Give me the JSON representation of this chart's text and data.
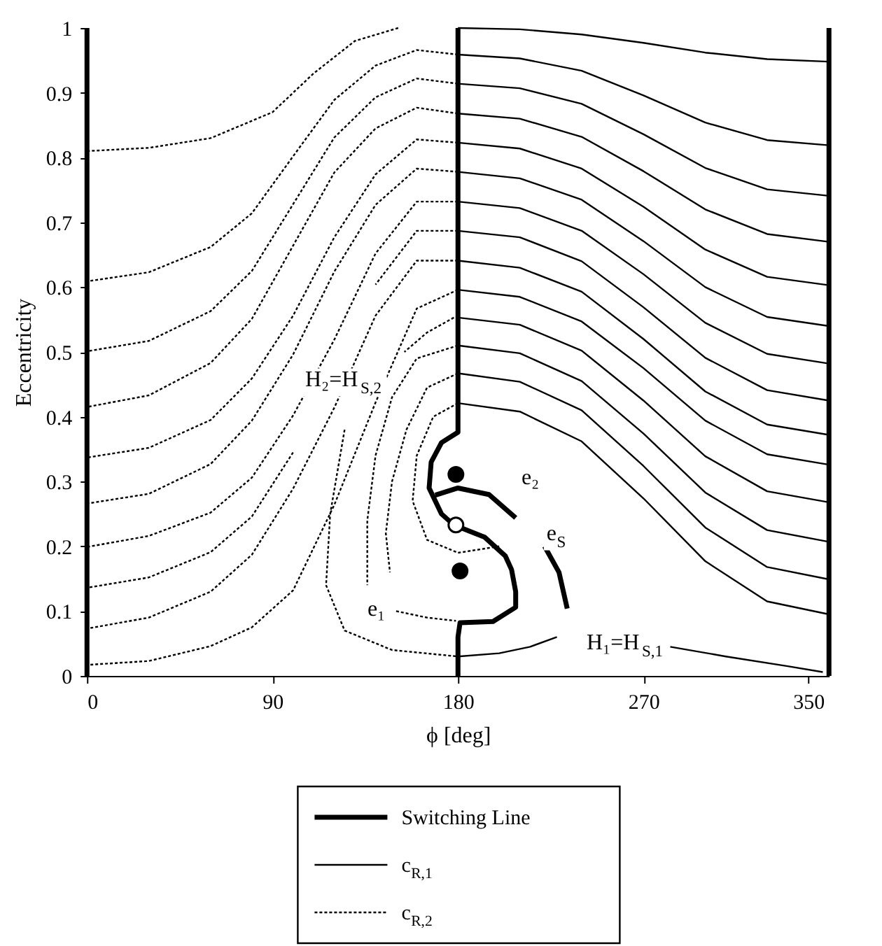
{
  "chart_data": {
    "type": "line",
    "xlabel": "ϕ [deg]",
    "ylabel": "Eccentricity",
    "xlim": [
      0,
      360
    ],
    "ylim": [
      0,
      1
    ],
    "xticks": [
      0,
      90,
      180,
      270,
      350
    ],
    "yticks": [
      0,
      0.1,
      0.2,
      0.3,
      0.4,
      0.5,
      0.6,
      0.7,
      0.8,
      0.9,
      1
    ],
    "grid": false,
    "legend": "bottom",
    "marker": "none",
    "series": [
      {
        "name": "Switching Line",
        "line_style": "solid",
        "color": "#000000",
        "x": [
          180,
          180,
          172,
          167,
          166,
          172,
          178,
          193,
          203,
          206,
          208,
          208,
          197,
          181,
          180,
          180,
          null,
          169,
          180,
          195,
          208,
          null,
          222,
          229,
          233
        ],
        "values": [
          1.0,
          0.376,
          0.36,
          0.33,
          0.29,
          0.25,
          0.233,
          0.214,
          0.185,
          0.164,
          0.13,
          0.106,
          0.084,
          0.082,
          0.06,
          0,
          null,
          0.279,
          0.29,
          0.28,
          0.244,
          null,
          0.2,
          0.16,
          0.104
        ]
      },
      {
        "name": "c$_{R,1}$",
        "line_style": "solid",
        "color": "#000000",
        "x": [
          360,
          330,
          300,
          270,
          240,
          210,
          180,
          null,
          360,
          330,
          300,
          270,
          240,
          210,
          180,
          null,
          360,
          330,
          300,
          270,
          240,
          210,
          180,
          null,
          360,
          330,
          300,
          270,
          240,
          210,
          180,
          null,
          360,
          330,
          300,
          270,
          240,
          210,
          180,
          null,
          360,
          330,
          300,
          270,
          240,
          210,
          180,
          null,
          360,
          330,
          300,
          270,
          240,
          210,
          180,
          null,
          360,
          330,
          300,
          270,
          240,
          210,
          180,
          null,
          360,
          330,
          300,
          270,
          240,
          210,
          180,
          null,
          360,
          330,
          300,
          270,
          240,
          210,
          180,
          null,
          360,
          330,
          300,
          270,
          240,
          210,
          180,
          null,
          360,
          330,
          300,
          270,
          240,
          210,
          180,
          null,
          360,
          330,
          300,
          270,
          240,
          210,
          180,
          null,
          360,
          330,
          300,
          270,
          240,
          210,
          180,
          null,
          357,
          340,
          310,
          283,
          null,
          180,
          200,
          215,
          228
        ],
        "values": [
          0.948,
          0.952,
          0.962,
          0.977,
          0.99,
          0.998,
          1.0,
          null,
          0.819,
          0.827,
          0.854,
          0.896,
          0.934,
          0.953,
          0.959,
          null,
          0.741,
          0.751,
          0.784,
          0.836,
          0.883,
          0.907,
          0.914,
          null,
          0.67,
          0.682,
          0.72,
          0.779,
          0.832,
          0.86,
          0.868,
          null,
          0.603,
          0.616,
          0.658,
          0.724,
          0.783,
          0.814,
          0.823,
          null,
          0.54,
          0.554,
          0.6,
          0.671,
          0.735,
          0.768,
          0.778,
          null,
          0.482,
          0.497,
          0.545,
          0.62,
          0.687,
          0.722,
          0.732,
          null,
          0.425,
          0.441,
          0.491,
          0.569,
          0.64,
          0.677,
          0.687,
          null,
          0.372,
          0.388,
          0.439,
          0.52,
          0.593,
          0.63,
          0.641,
          null,
          0.326,
          0.342,
          0.394,
          0.475,
          0.547,
          0.585,
          0.596,
          null,
          0.268,
          0.285,
          0.339,
          0.425,
          0.502,
          0.542,
          0.553,
          null,
          0.207,
          0.225,
          0.283,
          0.374,
          0.455,
          0.498,
          0.51,
          null,
          0.149,
          0.168,
          0.229,
          0.324,
          0.41,
          0.454,
          0.467,
          null,
          0.095,
          0.115,
          0.177,
          0.274,
          0.362,
          0.408,
          0.421,
          null,
          0.006,
          0.015,
          0.03,
          0.045,
          null,
          0.03,
          0.035,
          0.045,
          0.06
        ]
      },
      {
        "name": "c$_{R,2}$",
        "line_style": "dotted",
        "color": "#000000",
        "x": [
          151,
          130,
          110,
          90,
          60,
          30,
          0,
          null,
          180,
          160,
          140,
          120,
          100,
          80,
          60,
          30,
          0,
          null,
          180,
          160,
          140,
          120,
          100,
          80,
          60,
          30,
          0,
          null,
          180,
          160,
          140,
          120,
          100,
          80,
          60,
          30,
          0,
          null,
          180,
          160,
          140,
          120,
          100,
          80,
          60,
          30,
          0,
          null,
          180,
          160,
          140,
          120,
          100,
          80,
          60,
          30,
          0,
          null,
          180,
          160,
          140,
          120,
          100,
          80,
          60,
          30,
          0,
          null,
          180,
          160,
          140,
          null,
          100,
          80,
          60,
          30,
          0,
          null,
          180,
          160,
          140,
          120,
          100,
          80,
          60,
          30,
          0,
          null,
          180,
          160,
          140,
          120,
          100,
          80,
          60,
          30,
          0,
          null,
          178,
          165,
          154,
          null,
          125,
          118,
          116,
          125,
          148,
          180,
          null,
          180,
          160,
          148,
          140,
          136,
          136,
          null,
          180,
          165,
          155,
          148,
          145,
          147,
          null,
          180,
          168,
          160,
          158,
          165,
          180,
          200,
          null,
          150,
          165,
          179
        ],
        "values": [
          1.0,
          0.98,
          0.93,
          0.87,
          0.83,
          0.815,
          0.81,
          null,
          0.959,
          0.966,
          0.942,
          0.889,
          0.802,
          0.714,
          0.662,
          0.623,
          0.609,
          null,
          0.914,
          0.922,
          0.893,
          0.831,
          0.728,
          0.625,
          0.563,
          0.517,
          0.501,
          null,
          0.868,
          0.877,
          0.845,
          0.777,
          0.664,
          0.551,
          0.483,
          0.433,
          0.415,
          null,
          0.823,
          0.828,
          0.774,
          0.677,
          0.556,
          0.459,
          0.395,
          0.352,
          0.337,
          null,
          0.778,
          0.783,
          0.727,
          0.624,
          0.496,
          0.394,
          0.327,
          0.281,
          0.266,
          null,
          0.732,
          0.732,
          0.652,
          0.519,
          0.402,
          0.306,
          0.252,
          0.216,
          0.199,
          null,
          0.687,
          0.687,
          0.604,
          null,
          0.345,
          0.246,
          0.191,
          0.152,
          0.136,
          null,
          0.641,
          0.641,
          0.556,
          0.414,
          0.289,
          0.187,
          0.13,
          0.09,
          0.073,
          null,
          0.596,
          0.567,
          0.422,
          0.264,
          0.132,
          0.075,
          0.046,
          0.023,
          0.017,
          null,
          0.553,
          0.53,
          0.5,
          null,
          0.38,
          0.25,
          0.14,
          0.07,
          0.04,
          0.03,
          null,
          0.51,
          0.49,
          0.43,
          0.34,
          0.24,
          0.14,
          null,
          0.467,
          0.445,
          0.38,
          0.3,
          0.22,
          0.16,
          null,
          0.421,
          0.4,
          0.34,
          0.27,
          0.21,
          0.19,
          0.2,
          null,
          0.1,
          0.09,
          0.085
        ]
      },
      {
        "type": "scatter",
        "marker": "circle",
        "color": "#000000",
        "x": [
          179,
          181
        ],
        "values": [
          0.311,
          0.162
        ]
      },
      {
        "type": "scatter",
        "marker": "circle",
        "color": "#ffffff",
        "x": [
          179
        ],
        "values": [
          0.233
        ]
      }
    ],
    "ref_lines": [
      {
        "axis": "x",
        "value": 0,
        "color": "#000000",
        "line_style": "solid"
      },
      {
        "axis": "x",
        "value": 360,
        "color": "#000000",
        "line_style": "solid"
      }
    ],
    "annotations": [
      "H₂=H$_{S,2}$",
      "e₂",
      "e$_{S}$",
      "e₁",
      "H₁=H$_{S,1}$"
    ]
  }
}
